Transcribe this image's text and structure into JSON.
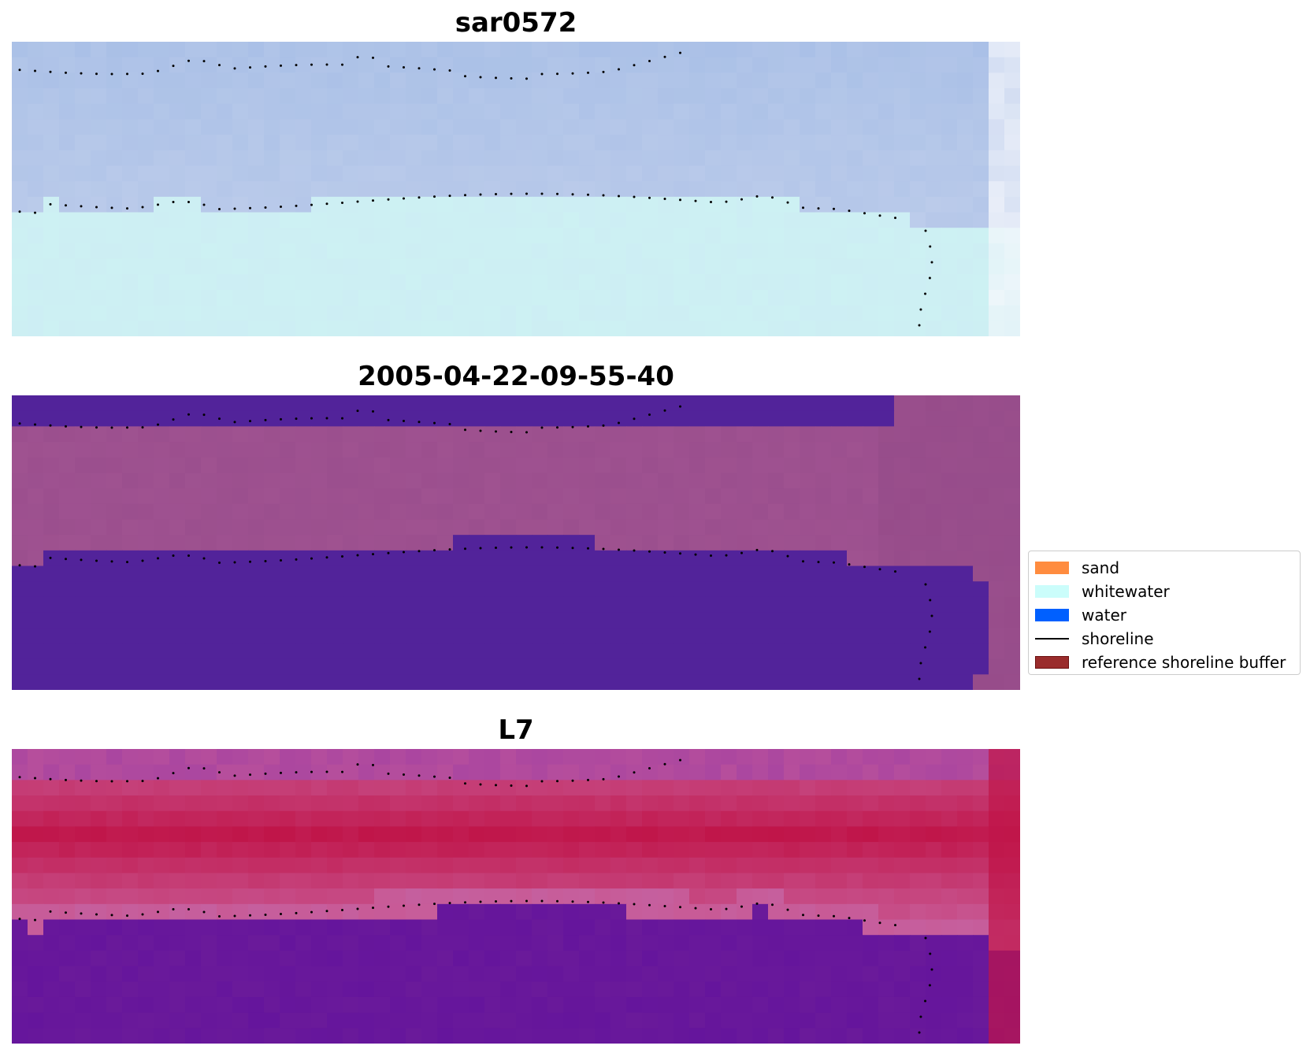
{
  "panels": [
    {
      "title": "sar0572",
      "kind": "rgb"
    },
    {
      "title": "2005-04-22-09-55-40",
      "kind": "classified"
    },
    {
      "title": "L7",
      "kind": "index"
    }
  ],
  "legend": {
    "items": [
      {
        "label": "sand",
        "type": "patch",
        "color": "#ff8c3f"
      },
      {
        "label": "whitewater",
        "type": "patch",
        "color": "#cbfdfb"
      },
      {
        "label": "water",
        "type": "patch",
        "color": "#0060ff"
      },
      {
        "label": "shoreline",
        "type": "line",
        "color": "#000000"
      },
      {
        "label": "reference shoreline buffer",
        "type": "patch",
        "color": "#9a2c2c",
        "edge": "#6b1010"
      }
    ]
  },
  "colors": {
    "sky_blue": "#9fb9e4",
    "whitewater_cyan": "#cdf1f3",
    "classified_purple": "#52239a",
    "classified_mauve": "#9b4f8e",
    "index_crimson": "#c01448",
    "index_violet": "#6a1a9a",
    "shoreline_dots": "#000000"
  }
}
